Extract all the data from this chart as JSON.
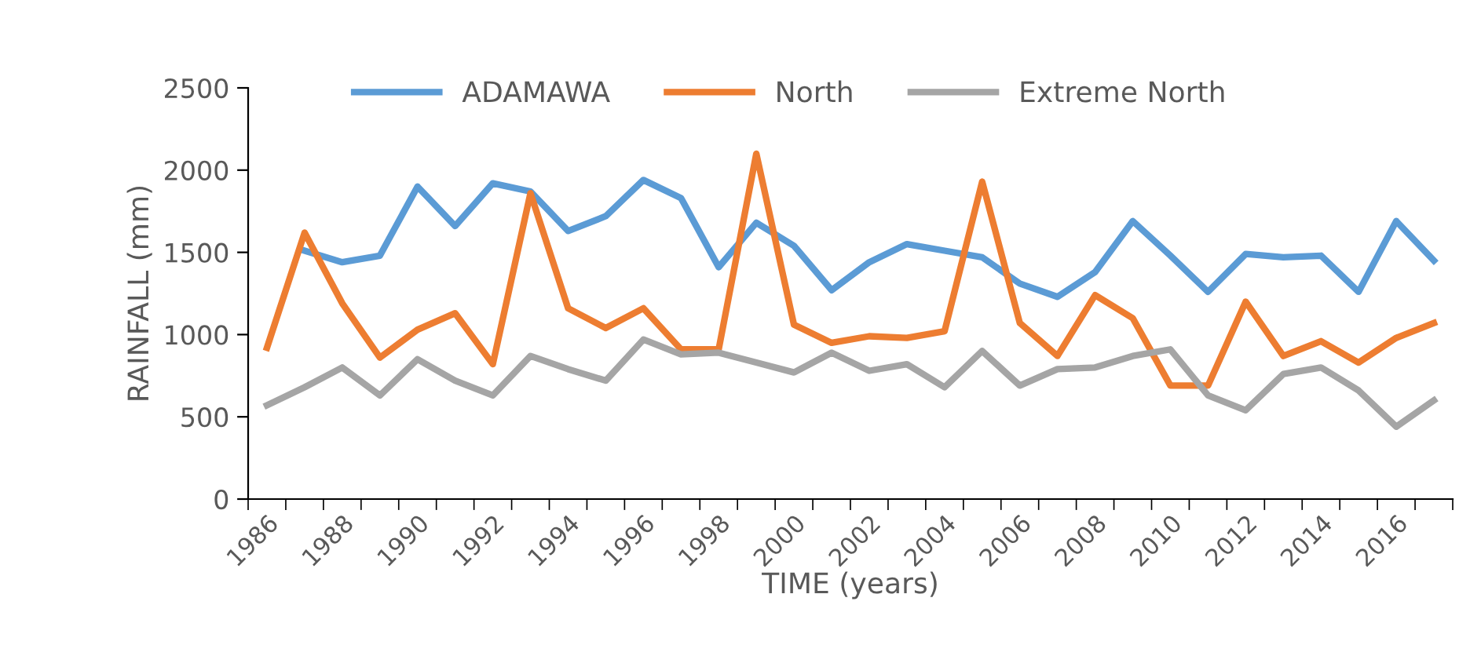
{
  "chart_data": {
    "type": "line",
    "xlabel": "TIME (years)",
    "ylabel": "RAINFALL (mm)",
    "categories": [
      "1986",
      null,
      "1988",
      null,
      "1990",
      null,
      "1992",
      null,
      "1994",
      null,
      "1996",
      null,
      "1998",
      null,
      "2000",
      null,
      "2002",
      null,
      "2004",
      null,
      "2006",
      null,
      "2008",
      null,
      "2010",
      null,
      "2012",
      null,
      "2014",
      null,
      "2016",
      null
    ],
    "series": [
      {
        "name": "ADAMAWA",
        "color": "#5b9bd5",
        "values": [
          null,
          1510,
          1440,
          1480,
          1900,
          1660,
          1920,
          1870,
          1630,
          1720,
          1940,
          1830,
          1410,
          1680,
          1540,
          1270,
          1440,
          1550,
          1510,
          1470,
          1310,
          1230,
          1380,
          1690,
          1480,
          1260,
          1490,
          1470,
          1480,
          1260,
          1690,
          1450
        ]
      },
      {
        "name": "North",
        "color": "#ed7d31",
        "values": [
          920,
          1620,
          1190,
          860,
          1030,
          1130,
          820,
          1860,
          1160,
          1040,
          1160,
          910,
          910,
          2100,
          1060,
          950,
          990,
          980,
          1020,
          1930,
          1070,
          870,
          1240,
          1100,
          690,
          690,
          1200,
          870,
          960,
          830,
          980,
          1070
        ]
      },
      {
        "name": "Extreme North",
        "color": "#a5a5a5",
        "values": [
          570,
          680,
          800,
          630,
          850,
          720,
          630,
          870,
          790,
          720,
          970,
          880,
          890,
          830,
          770,
          890,
          780,
          820,
          680,
          900,
          690,
          790,
          800,
          870,
          910,
          630,
          540,
          760,
          800,
          660,
          440,
          600
        ]
      }
    ],
    "ylim": [
      0,
      2500
    ],
    "yticks": [
      0,
      500,
      1000,
      1500,
      2000,
      2500
    ],
    "grid": false,
    "legend": "top",
    "marker": "none",
    "line_style": "solid"
  }
}
